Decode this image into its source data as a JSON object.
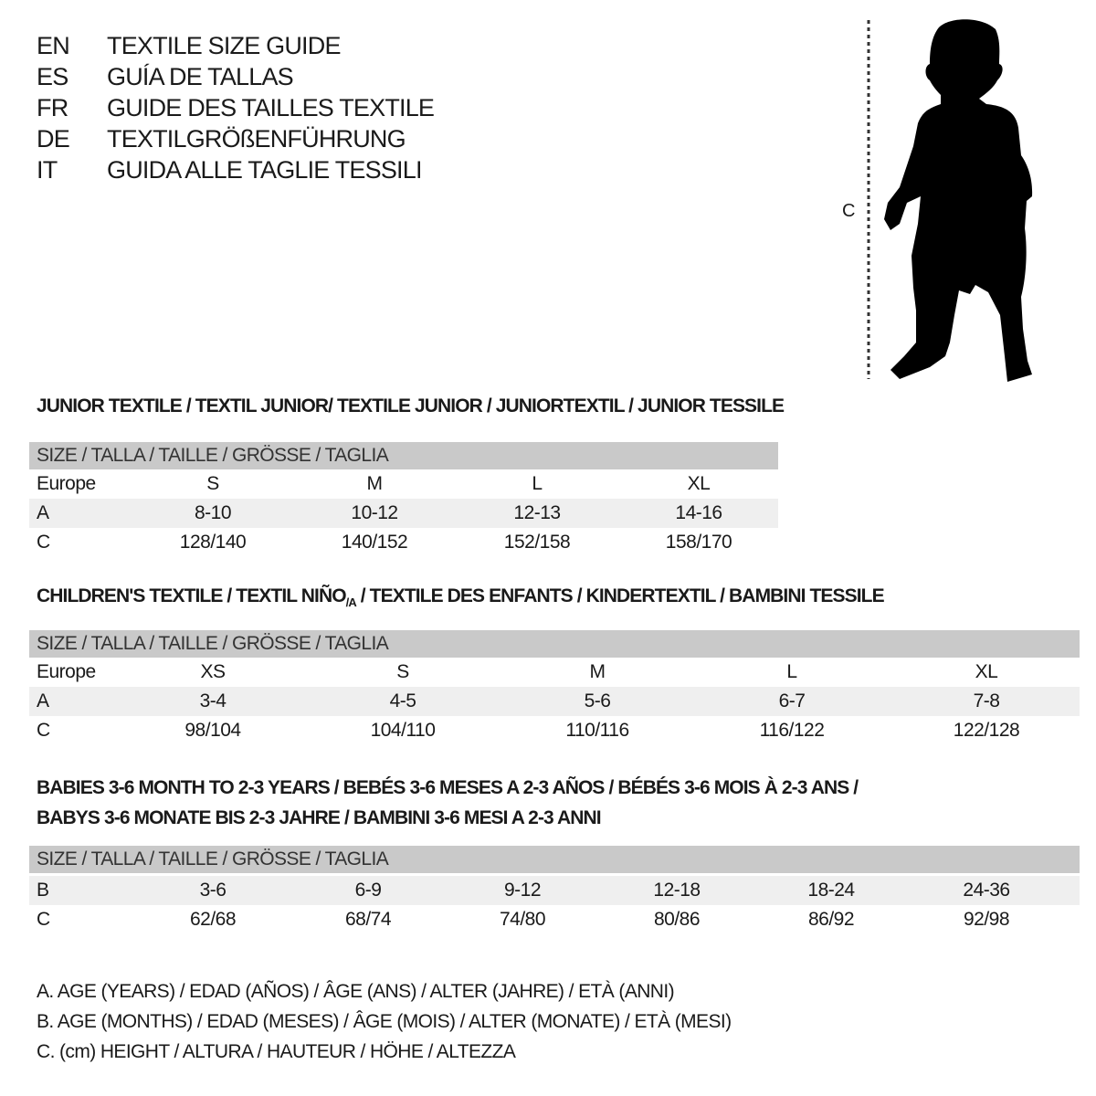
{
  "header": {
    "languages": [
      {
        "code": "EN",
        "text": "TEXTILE SIZE GUIDE"
      },
      {
        "code": "ES",
        "text": "GUÍA DE TALLAS"
      },
      {
        "code": "FR",
        "text": "GUIDE DES TAILLES TEXTILE"
      },
      {
        "code": "DE",
        "text": "TEXTILGRÖßENFÜHRUNG"
      },
      {
        "code": "IT",
        "text": "GUIDA ALLE TAGLIE TESSILI"
      }
    ]
  },
  "figure": {
    "icon": "child-silhouette-icon",
    "measure_label": "C"
  },
  "junior": {
    "title": "JUNIOR TEXTILE / TEXTIL JUNIOR/ TEXTILE JUNIOR / JUNIORTEXTIL / JUNIOR TESSILE",
    "header": "SIZE / TALLA / TAILLE / GRÖSSE / TAGLIA",
    "rows": [
      {
        "label": "Europe",
        "cells": [
          "S",
          "M",
          "L",
          "XL"
        ]
      },
      {
        "label": "A",
        "cells": [
          "8-10",
          "10-12",
          "12-13",
          "14-16"
        ]
      },
      {
        "label": "C",
        "cells": [
          "128/140",
          "140/152",
          "152/158",
          "158/170"
        ]
      }
    ]
  },
  "children": {
    "title_pre": "CHILDREN'S TEXTILE / TEXTIL NIÑO",
    "title_sub": "/A",
    "title_post": " / TEXTILE DES ENFANTS / KINDERTEXTIL / BAMBINI TESSILE",
    "header": "SIZE / TALLA / TAILLE / GRÖSSE / TAGLIA",
    "rows": [
      {
        "label": "Europe",
        "cells": [
          "XS",
          "S",
          "M",
          "L",
          "XL"
        ]
      },
      {
        "label": "A",
        "cells": [
          "3-4",
          "4-5",
          "5-6",
          "6-7",
          "7-8"
        ]
      },
      {
        "label": "C",
        "cells": [
          "98/104",
          "104/110",
          "110/116",
          "116/122",
          "122/128"
        ]
      }
    ]
  },
  "babies": {
    "title_lines": [
      "BABIES 3-6 MONTH TO 2-3 YEARS / BEBÉS 3-6 MESES A 2-3 AÑOS / BÉBÉS 3-6 MOIS À 2-3 ANS /",
      "BABYS 3-6 MONATE BIS 2-3 JAHRE / BAMBINI 3-6 MESI A 2-3 ANNI"
    ],
    "header": "SIZE / TALLA / TAILLE / GRÖSSE / TAGLIA",
    "rows": [
      {
        "label": "B",
        "cells": [
          "3-6",
          "6-9",
          "9-12",
          "12-18",
          "18-24",
          "24-36"
        ]
      },
      {
        "label": "C",
        "cells": [
          "62/68",
          "68/74",
          "74/80",
          "80/86",
          "86/92",
          "92/98"
        ]
      }
    ]
  },
  "legend": [
    "A. AGE (YEARS) / EDAD (AÑOS) / ÂGE (ANS) / ALTER (JAHRE) / ETÀ (ANNI)",
    "B. AGE (MONTHS) / EDAD (MESES) / ÂGE (MOIS) / ALTER (MONATE) / ETÀ (MESI)",
    "C. (cm) HEIGHT / ALTURA / HAUTEUR / HÖHE / ALTEZZA"
  ],
  "colors": {
    "header_bg": "#c9c9c9",
    "alt_row_bg": "#efefef",
    "text": "#1a1a1a"
  }
}
